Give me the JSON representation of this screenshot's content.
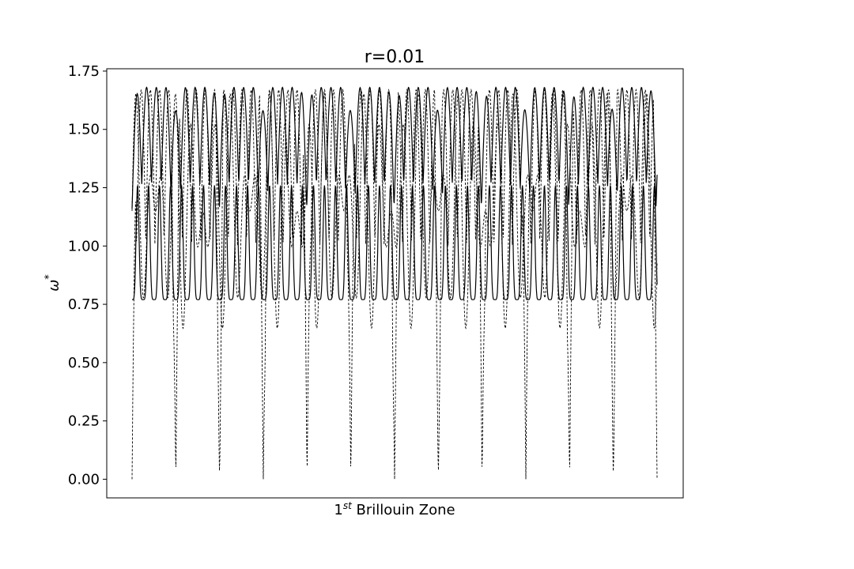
{
  "chart_data": {
    "type": "line",
    "title": "r=0.01",
    "xlabel_prefix": "1",
    "xlabel_sup": "st",
    "xlabel_suffix": " Brillouin Zone",
    "ylabel_base": "ω",
    "ylabel_sup": "*",
    "ylim": [
      -0.08,
      1.76
    ],
    "yticks": [
      0.0,
      0.25,
      0.5,
      0.75,
      1.0,
      1.25,
      1.5,
      1.75
    ],
    "ytick_labels": [
      "0.00",
      "0.25",
      "0.50",
      "0.75",
      "1.00",
      "1.25",
      "1.50",
      "1.75"
    ],
    "grid": false,
    "legend": "none",
    "x_ticks_shown": false,
    "k_segments": 12,
    "line_color": "#000000",
    "series": [
      {
        "style": "solid",
        "y_min": 0.75,
        "y_max": 1.26
      },
      {
        "style": "dashed",
        "y_min": 0.0,
        "y_max": 1.67
      },
      {
        "style": "solid",
        "y_min": 1.15,
        "y_max": 1.68
      },
      {
        "style": "dashed",
        "y_min": 0.6,
        "y_max": 1.68
      }
    ]
  }
}
